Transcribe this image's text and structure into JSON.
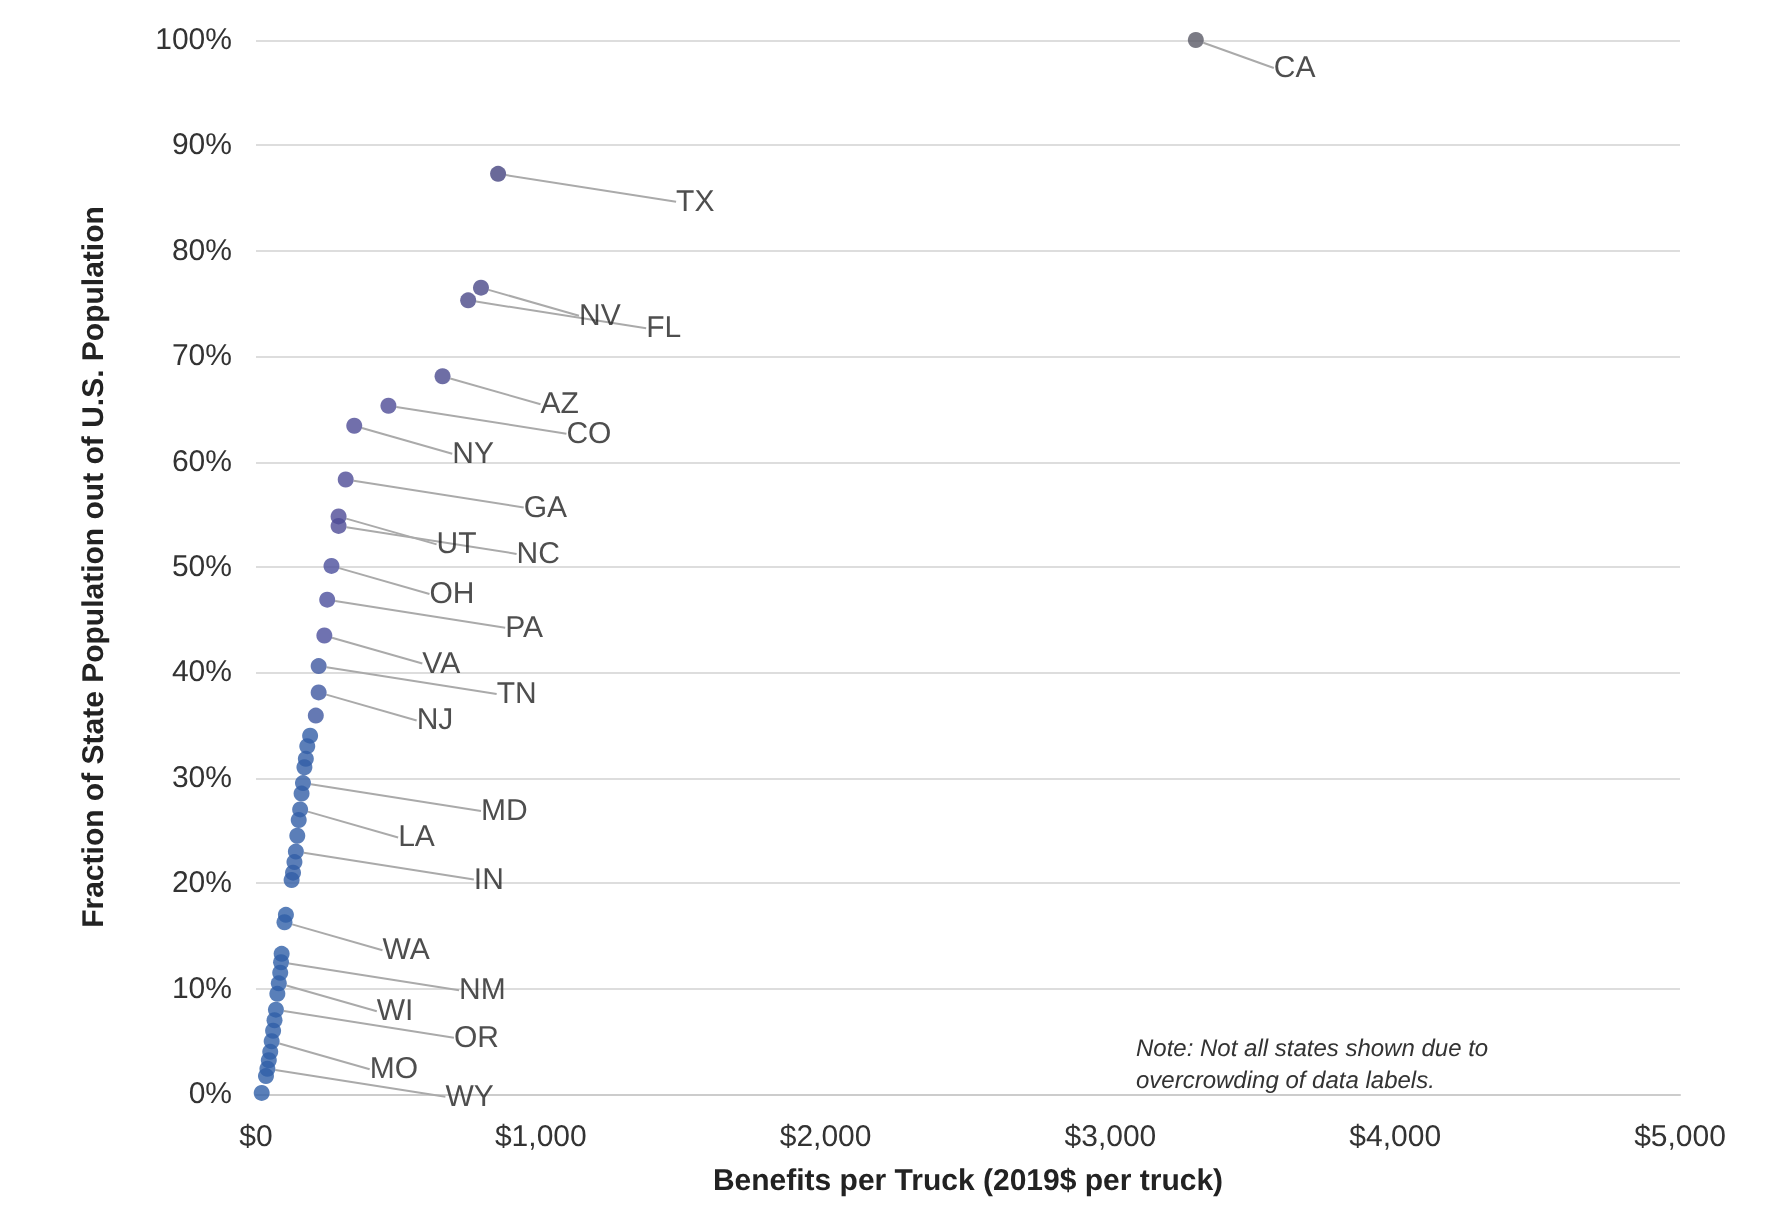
{
  "chart_data": {
    "type": "scatter",
    "xlabel": "Benefits per Truck (2019$ per truck)",
    "ylabel": "Fraction of State Population out of U.S. Population",
    "x": [
      3300,
      850,
      790,
      745,
      655,
      465,
      345,
      315,
      290,
      290,
      265,
      250,
      240,
      220,
      220,
      210,
      190,
      180,
      175,
      170,
      165,
      160,
      155,
      150,
      145,
      140,
      135,
      130,
      125,
      105,
      100,
      90,
      88,
      85,
      80,
      75,
      70,
      65,
      60,
      55,
      50,
      45,
      40,
      35,
      20
    ],
    "values": [
      100,
      87.3,
      76.5,
      75.3,
      68.1,
      65.3,
      63.4,
      58.3,
      54.8,
      53.9,
      50.1,
      46.9,
      43.5,
      40.6,
      38.1,
      35.9,
      34.0,
      33.0,
      31.8,
      31.0,
      29.5,
      28.5,
      27.0,
      26.0,
      24.5,
      23.0,
      22.0,
      21.0,
      20.3,
      17.0,
      16.3,
      13.3,
      12.5,
      11.5,
      10.5,
      9.5,
      8.0,
      7.0,
      6.0,
      5.0,
      4.0,
      3.2,
      2.4,
      1.7,
      0.1
    ],
    "colors": [
      "#5a5a66",
      "#45437f",
      "#4a4888",
      "#4a4888",
      "#4a4a8e",
      "#4d4b96",
      "#4d4b96",
      "#4d4b96",
      "#4d4b96",
      "#4d4b96",
      "#4b4f9c",
      "#4b4f9c",
      "#4b4f9c",
      "#3f58a0",
      "#3f58a0",
      "#3f58a0",
      "#325ea6",
      "#325ea6",
      "#325ea6",
      "#325ea6",
      "#325ea6",
      "#325ea6",
      "#325ea6",
      "#325ea6",
      "#325ea6",
      "#325ea6",
      "#325ea6",
      "#325ea6",
      "#325ea6",
      "#2f5fa8",
      "#2f5fa8",
      "#2f5fa8",
      "#2f5fa8",
      "#2f5fa8",
      "#2f5fa8",
      "#2f5fa8",
      "#2f5fa8",
      "#2f5fa8",
      "#2f5fa8",
      "#2f5fa8",
      "#2f5fa8",
      "#2f5fa8",
      "#2f5fa8",
      "#2f5fa8",
      "#2f5fa8"
    ],
    "xlim": [
      0,
      5000
    ],
    "xticks": [
      {
        "value": 0,
        "label": "$0"
      },
      {
        "value": 1000,
        "label": "$1,000"
      },
      {
        "value": 2000,
        "label": "$2,000"
      },
      {
        "value": 3000,
        "label": "$3,000"
      },
      {
        "value": 4000,
        "label": "$4,000"
      },
      {
        "value": 5000,
        "label": "$5,000"
      }
    ],
    "ylim": [
      0,
      100
    ],
    "yticks": [
      {
        "value": 0,
        "label": "0%"
      },
      {
        "value": 10,
        "label": "10%"
      },
      {
        "value": 20,
        "label": "20%"
      },
      {
        "value": 30,
        "label": "30%"
      },
      {
        "value": 40,
        "label": "40%"
      },
      {
        "value": 50,
        "label": "50%"
      },
      {
        "value": 60,
        "label": "60%"
      },
      {
        "value": 70,
        "label": "70%"
      },
      {
        "value": 80,
        "label": "80%"
      },
      {
        "value": 90,
        "label": "90%"
      },
      {
        "value": 100,
        "label": "100%"
      }
    ],
    "grid": "y",
    "marker": "circle",
    "annotations": [
      {
        "text": "CA",
        "x": 3300,
        "y": 100
      },
      {
        "text": "TX",
        "x": 850,
        "y": 87.3
      },
      {
        "text": "NV",
        "x": 790,
        "y": 76.5
      },
      {
        "text": "FL",
        "x": 745,
        "y": 75.3
      },
      {
        "text": "AZ",
        "x": 655,
        "y": 68.1
      },
      {
        "text": "CO",
        "x": 465,
        "y": 65.3
      },
      {
        "text": "NY",
        "x": 345,
        "y": 63.4
      },
      {
        "text": "GA",
        "x": 315,
        "y": 58.3
      },
      {
        "text": "UT",
        "x": 290,
        "y": 54.8
      },
      {
        "text": "NC",
        "x": 290,
        "y": 53.9
      },
      {
        "text": "OH",
        "x": 265,
        "y": 50.1
      },
      {
        "text": "PA",
        "x": 250,
        "y": 46.9
      },
      {
        "text": "VA",
        "x": 240,
        "y": 43.5
      },
      {
        "text": "TN",
        "x": 220,
        "y": 40.6
      },
      {
        "text": "NJ",
        "x": 220,
        "y": 38.1
      },
      {
        "text": "MD",
        "x": 165,
        "y": 29.5
      },
      {
        "text": "LA",
        "x": 155,
        "y": 27.0
      },
      {
        "text": "IN",
        "x": 140,
        "y": 23.0
      },
      {
        "text": "WA",
        "x": 100,
        "y": 16.3
      },
      {
        "text": "NM",
        "x": 88,
        "y": 12.5
      },
      {
        "text": "WI",
        "x": 80,
        "y": 10.5
      },
      {
        "text": "OR",
        "x": 70,
        "y": 8.0
      },
      {
        "text": "MO",
        "x": 55,
        "y": 5.0
      },
      {
        "text": "WY",
        "x": 40,
        "y": 2.4
      },
      "Note: Not all states shown due to overcrowding of data labels."
    ]
  }
}
